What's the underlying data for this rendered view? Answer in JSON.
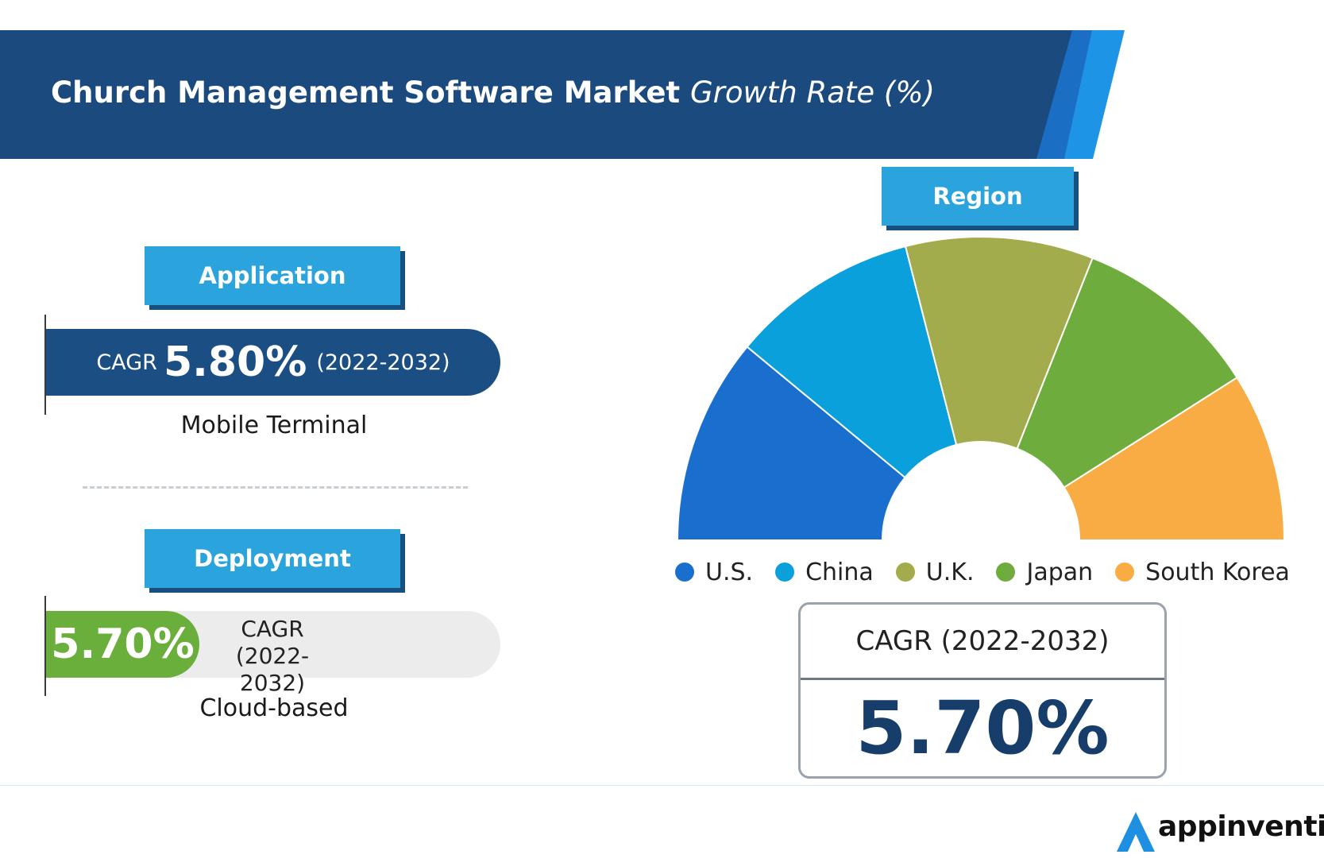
{
  "header": {
    "title_bold": "Church Management Software Market",
    "title_italic": "Growth Rate (%)"
  },
  "application": {
    "tag": "Application",
    "cagr_label": "CAGR",
    "cagr_value": "5.80%",
    "period": "(2022-2032)",
    "segment": "Mobile Terminal"
  },
  "deployment": {
    "tag": "Deployment",
    "cagr_value": "5.70%",
    "cagr_label": "CAGR",
    "period": "(2022-2032)",
    "segment": "Cloud-based"
  },
  "region": {
    "tag": "Region",
    "summary_label": "CAGR  (2022-2032)",
    "summary_value": "5.70%"
  },
  "chart_data": {
    "type": "pie",
    "variant": "semi-donut",
    "categories": [
      "U.S.",
      "China",
      "U.K.",
      "Japan",
      "South Korea"
    ],
    "values": [
      22,
      20,
      20,
      20,
      18
    ],
    "colors": [
      "#1a6fce",
      "#0aa0dc",
      "#a3ac4c",
      "#6fac3e",
      "#f9ac44"
    ],
    "legend_position": "bottom"
  },
  "brand": {
    "name": "appinventiv",
    "icon": "appinventiv-logo-icon"
  }
}
